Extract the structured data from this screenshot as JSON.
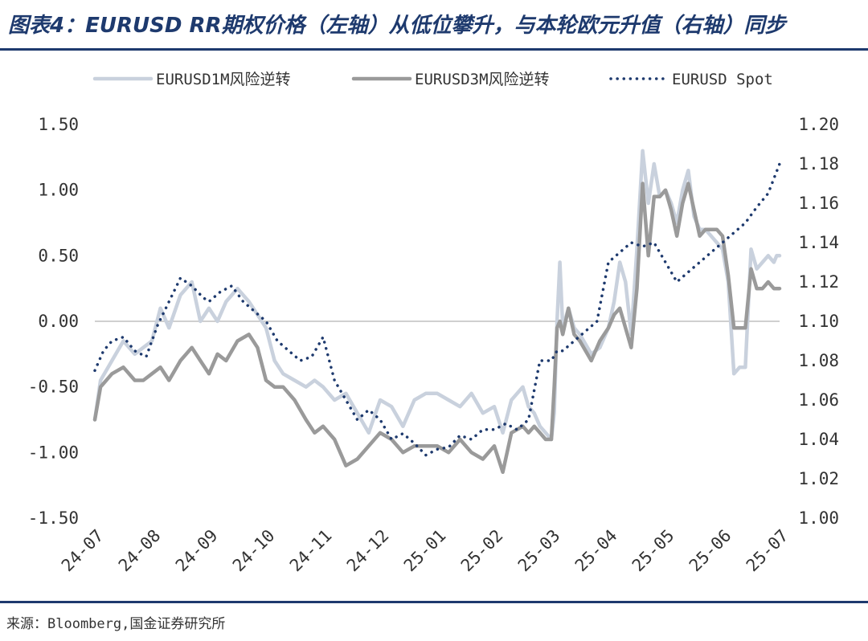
{
  "header": {
    "title": "图表4：EURUSD RR期权价格（左轴）从低位攀升，与本轮欧元升值（右轴）同步"
  },
  "footer": {
    "source": "来源：Bloomberg,国金证券研究所"
  },
  "colors": {
    "title": "#1e3a6e",
    "rr1m": "#c9d1dd",
    "rr3m": "#9a9a9a",
    "spot": "#1e3a6e",
    "zero_line": "#bfbfbf"
  },
  "chart_data": {
    "type": "line",
    "title": "EURUSD RR期权价格（左轴）从低位攀升，与本轮欧元升值（右轴）同步",
    "x_labels": [
      "24-07",
      "24-08",
      "24-09",
      "24-10",
      "24-11",
      "24-12",
      "25-01",
      "25-02",
      "25-03",
      "25-04",
      "25-05",
      "25-06",
      "25-07"
    ],
    "y_left": {
      "min": -1.5,
      "max": 1.5,
      "ticks": [
        "1.50",
        "1.00",
        "0.50",
        "0.00",
        "-0.50",
        "-1.00",
        "-1.50"
      ],
      "tick_values": [
        1.5,
        1.0,
        0.5,
        0.0,
        -0.5,
        -1.0,
        -1.5
      ]
    },
    "y_right": {
      "min": 1.0,
      "max": 1.2,
      "ticks": [
        "1.20",
        "1.18",
        "1.16",
        "1.14",
        "1.12",
        "1.10",
        "1.08",
        "1.06",
        "1.04",
        "1.02",
        "1.00"
      ],
      "tick_values": [
        1.2,
        1.18,
        1.16,
        1.14,
        1.12,
        1.1,
        1.08,
        1.06,
        1.04,
        1.02,
        1.0
      ]
    },
    "legend": [
      "EURUSD1M风险逆转",
      "EURUSD3M风险逆转",
      "EURUSD Spot"
    ],
    "series": [
      {
        "name": "EURUSD1M风险逆转",
        "axis": "left",
        "style": "line",
        "t": [
          0,
          0.1,
          0.3,
          0.5,
          0.7,
          0.85,
          1,
          1.15,
          1.3,
          1.5,
          1.7,
          1.85,
          2,
          2.15,
          2.3,
          2.5,
          2.7,
          2.85,
          3,
          3.15,
          3.3,
          3.5,
          3.7,
          3.85,
          4,
          4.2,
          4.4,
          4.6,
          4.8,
          5,
          5.2,
          5.4,
          5.6,
          5.8,
          6,
          6.2,
          6.4,
          6.6,
          6.8,
          7,
          7.15,
          7.3,
          7.5,
          7.6,
          7.7,
          7.8,
          7.9,
          8,
          8.05,
          8.1,
          8.15,
          8.2,
          8.3,
          8.4,
          8.5,
          8.7,
          8.85,
          9,
          9.1,
          9.2,
          9.3,
          9.4,
          9.5,
          9.6,
          9.7,
          9.8,
          9.9,
          10,
          10.1,
          10.2,
          10.3,
          10.4,
          10.5,
          10.6,
          10.7,
          10.8,
          10.9,
          11,
          11.1,
          11.2,
          11.3,
          11.4,
          11.5,
          11.6,
          11.7,
          11.8,
          11.9,
          11.95,
          12
        ],
        "values": [
          -0.75,
          -0.45,
          -0.3,
          -0.15,
          -0.25,
          -0.2,
          -0.15,
          0.1,
          -0.05,
          0.2,
          0.3,
          0.0,
          0.1,
          0.0,
          0.15,
          0.25,
          0.15,
          0.05,
          -0.05,
          -0.3,
          -0.4,
          -0.45,
          -0.5,
          -0.45,
          -0.5,
          -0.6,
          -0.55,
          -0.7,
          -0.85,
          -0.6,
          -0.65,
          -0.8,
          -0.6,
          -0.55,
          -0.55,
          -0.6,
          -0.65,
          -0.55,
          -0.7,
          -0.65,
          -0.85,
          -0.6,
          -0.5,
          -0.65,
          -0.7,
          -0.8,
          -0.85,
          -0.9,
          -0.7,
          0.0,
          0.45,
          -0.05,
          0.1,
          -0.05,
          -0.1,
          -0.25,
          -0.2,
          -0.05,
          0.15,
          0.45,
          0.3,
          -0.1,
          0.55,
          1.3,
          0.9,
          1.2,
          0.95,
          1.0,
          0.9,
          0.75,
          1.0,
          1.15,
          0.8,
          0.7,
          0.7,
          0.65,
          0.6,
          0.55,
          0.3,
          -0.4,
          -0.35,
          -0.35,
          0.55,
          0.4,
          0.45,
          0.5,
          0.45,
          0.5,
          0.5
        ]
      },
      {
        "name": "EURUSD3M风险逆转",
        "axis": "left",
        "style": "line",
        "t": [
          0,
          0.1,
          0.3,
          0.5,
          0.7,
          0.85,
          1,
          1.15,
          1.3,
          1.5,
          1.7,
          1.85,
          2,
          2.15,
          2.3,
          2.5,
          2.7,
          2.85,
          3,
          3.15,
          3.3,
          3.5,
          3.7,
          3.85,
          4,
          4.2,
          4.4,
          4.6,
          4.8,
          5,
          5.2,
          5.4,
          5.6,
          5.8,
          6,
          6.2,
          6.4,
          6.6,
          6.8,
          7,
          7.15,
          7.3,
          7.5,
          7.6,
          7.7,
          7.8,
          7.9,
          8,
          8.05,
          8.1,
          8.15,
          8.2,
          8.3,
          8.4,
          8.5,
          8.7,
          8.85,
          9,
          9.1,
          9.2,
          9.3,
          9.4,
          9.5,
          9.6,
          9.7,
          9.8,
          9.9,
          10,
          10.1,
          10.2,
          10.3,
          10.4,
          10.5,
          10.6,
          10.7,
          10.8,
          10.9,
          11,
          11.1,
          11.2,
          11.3,
          11.4,
          11.5,
          11.6,
          11.7,
          11.8,
          11.9,
          11.95,
          12
        ],
        "values": [
          -0.75,
          -0.5,
          -0.4,
          -0.35,
          -0.45,
          -0.45,
          -0.4,
          -0.35,
          -0.45,
          -0.3,
          -0.2,
          -0.3,
          -0.4,
          -0.25,
          -0.3,
          -0.15,
          -0.1,
          -0.2,
          -0.45,
          -0.5,
          -0.5,
          -0.6,
          -0.75,
          -0.85,
          -0.8,
          -0.9,
          -1.1,
          -1.05,
          -0.95,
          -0.85,
          -0.9,
          -1.0,
          -0.95,
          -0.95,
          -0.95,
          -1.0,
          -0.9,
          -1.0,
          -1.05,
          -0.95,
          -1.15,
          -0.85,
          -0.8,
          -0.85,
          -0.8,
          -0.85,
          -0.9,
          -0.9,
          -0.5,
          -0.05,
          0.0,
          -0.1,
          0.1,
          -0.1,
          -0.15,
          -0.3,
          -0.15,
          -0.05,
          0.05,
          0.1,
          -0.05,
          -0.2,
          0.25,
          1.05,
          0.5,
          0.95,
          0.95,
          1.0,
          0.85,
          0.65,
          0.9,
          1.05,
          0.85,
          0.65,
          0.7,
          0.7,
          0.7,
          0.65,
          0.35,
          -0.05,
          -0.05,
          -0.05,
          0.4,
          0.25,
          0.25,
          0.3,
          0.25,
          0.25,
          0.25
        ]
      },
      {
        "name": "EURUSD Spot",
        "axis": "right",
        "style": "dotted",
        "t": [
          0,
          0.15,
          0.3,
          0.5,
          0.7,
          0.9,
          1.1,
          1.3,
          1.5,
          1.7,
          1.8,
          1.9,
          2,
          2.2,
          2.4,
          2.6,
          2.8,
          3,
          3.2,
          3.4,
          3.6,
          3.8,
          4,
          4.2,
          4.4,
          4.6,
          4.8,
          5,
          5.2,
          5.4,
          5.6,
          5.8,
          6,
          6.2,
          6.4,
          6.6,
          6.8,
          7,
          7.2,
          7.4,
          7.6,
          7.8,
          8,
          8.1,
          8.2,
          8.4,
          8.6,
          8.8,
          9,
          9.2,
          9.4,
          9.6,
          9.8,
          10,
          10.2,
          10.4,
          10.6,
          10.8,
          11,
          11.2,
          11.4,
          11.6,
          11.8,
          12
        ],
        "values": [
          1.075,
          1.085,
          1.09,
          1.092,
          1.085,
          1.082,
          1.098,
          1.11,
          1.122,
          1.118,
          1.115,
          1.112,
          1.11,
          1.115,
          1.118,
          1.11,
          1.105,
          1.1,
          1.09,
          1.085,
          1.08,
          1.082,
          1.092,
          1.07,
          1.06,
          1.05,
          1.055,
          1.05,
          1.04,
          1.043,
          1.038,
          1.032,
          1.035,
          1.036,
          1.042,
          1.04,
          1.045,
          1.045,
          1.048,
          1.045,
          1.05,
          1.08,
          1.08,
          1.085,
          1.085,
          1.09,
          1.095,
          1.1,
          1.13,
          1.135,
          1.14,
          1.138,
          1.14,
          1.13,
          1.12,
          1.125,
          1.13,
          1.135,
          1.14,
          1.145,
          1.15,
          1.158,
          1.165,
          1.18
        ]
      }
    ]
  }
}
